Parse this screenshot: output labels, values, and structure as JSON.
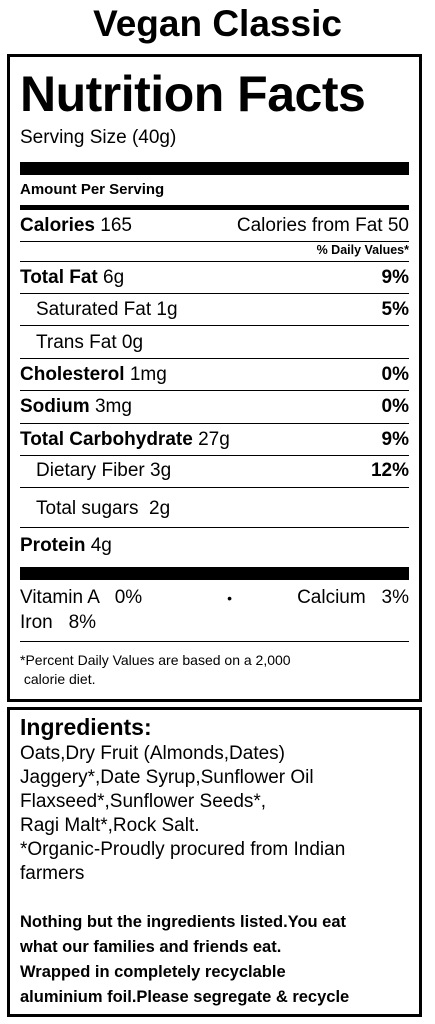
{
  "product_title": "Vegan Classic",
  "label": {
    "heading": "Nutrition Facts",
    "serving_size": "Serving Size (40g)",
    "amount_per_serving": "Amount Per Serving",
    "calories_label": "Calories",
    "calories_value": "165",
    "calories_from_fat": "Calories from Fat 50",
    "daily_values_header": "% Daily Values*",
    "nutrients": {
      "total_fat": {
        "label": "Total Fat",
        "amount": "6g",
        "dv": "9%"
      },
      "saturated_fat": {
        "label": "Saturated Fat 1g",
        "dv": "5%"
      },
      "trans_fat": {
        "label": "Trans Fat 0g"
      },
      "cholesterol": {
        "label": "Cholesterol",
        "amount": "1mg",
        "dv": "0%"
      },
      "sodium": {
        "label": "Sodium",
        "amount": "3mg",
        "dv": "0%"
      },
      "total_carbohydrate": {
        "label": "Total Carbohydrate",
        "amount": "27g",
        "dv": "9%"
      },
      "dietary_fiber": {
        "label": "Dietary Fiber 3g",
        "dv": "12%"
      },
      "total_sugars": {
        "label": "Total sugars  2g"
      },
      "protein": {
        "label": "Protein",
        "amount": "4g"
      }
    },
    "vitamins": {
      "vitamin_a": "Vitamin A   0%",
      "separator": "•",
      "calcium": "Calcium   3%",
      "iron": "Iron   8%"
    },
    "footnote_line1": "*Percent Daily Values are based on a 2,000",
    "footnote_line2": " calorie diet."
  },
  "ingredients": {
    "heading": "Ingredients:",
    "lines": [
      "Oats,Dry Fruit (Almonds,Dates)",
      "Jaggery*,Date Syrup,Sunflower Oil",
      "Flaxseed*,Sunflower Seeds*,",
      "Ragi Malt*,Rock Salt.",
      "*Organic-Proudly procured from Indian",
      "farmers"
    ],
    "note_lines": [
      "Nothing but the ingredients listed.You eat",
      "what our families and friends eat.",
      "Wrapped in completely recyclable",
      "aluminium foil.Please segregate & recycle"
    ]
  }
}
